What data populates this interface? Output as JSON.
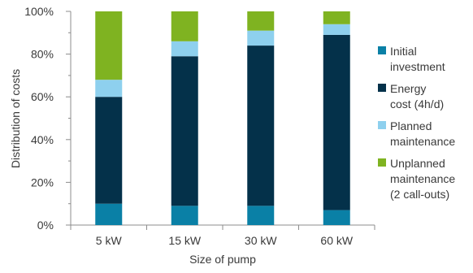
{
  "chart_data": {
    "type": "bar",
    "stacked": true,
    "title": "",
    "xlabel": "Size of pump",
    "ylabel": "Distribution of costs",
    "categories": [
      "5 kW",
      "15 kW",
      "30 kW",
      "60 kW"
    ],
    "ylim": [
      0,
      100
    ],
    "yticks": [
      0,
      20,
      40,
      60,
      80,
      100
    ],
    "ytick_labels": [
      "0%",
      "20%",
      "40%",
      "60%",
      "80%",
      "100%"
    ],
    "grid": false,
    "legend_position": "right",
    "series": [
      {
        "name": "Initial investment",
        "legend_lines": [
          "Initial",
          "investment"
        ],
        "color": "#0a80a6",
        "values": [
          10,
          9,
          9,
          7
        ]
      },
      {
        "name": "Energy cost (4h/d)",
        "legend_lines": [
          "Energy",
          "cost (4h/d)"
        ],
        "color": "#04314a",
        "values": [
          50,
          70,
          75,
          82
        ]
      },
      {
        "name": "Planned maintenance",
        "legend_lines": [
          "Planned",
          "maintenance"
        ],
        "color": "#8ed0ee",
        "values": [
          8,
          7,
          7,
          5
        ]
      },
      {
        "name": "Unplanned maintenance (2 call-outs)",
        "legend_lines": [
          "Unplanned",
          "maintenance",
          "(2 call-outs)"
        ],
        "color": "#7fb321",
        "values": [
          32,
          14,
          9,
          6
        ]
      }
    ]
  }
}
